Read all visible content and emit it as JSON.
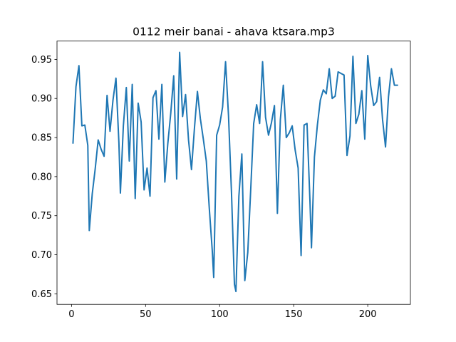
{
  "chart_data": {
    "type": "line",
    "title": "0112 meir banai - ahava ktsara.mp3",
    "xlabel": "",
    "ylabel": "",
    "xlim": [
      -9.8,
      228.8
    ],
    "ylim": [
      0.6365,
      0.9735
    ],
    "xticks": [
      0,
      50,
      100,
      150,
      200
    ],
    "xtick_labels": [
      "0",
      "50",
      "100",
      "150",
      "200"
    ],
    "yticks": [
      0.65,
      0.7,
      0.75,
      0.8,
      0.85,
      0.9,
      0.95
    ],
    "ytick_labels": [
      "0.65",
      "0.70",
      "0.75",
      "0.80",
      "0.85",
      "0.90",
      "0.95"
    ],
    "grid": false,
    "legend": "none",
    "series": [
      {
        "color": "#1f77b4",
        "points": [
          [
            1,
            0.843
          ],
          [
            3,
            0.915
          ],
          [
            5,
            0.942
          ],
          [
            7,
            0.865
          ],
          [
            9,
            0.866
          ],
          [
            11,
            0.84
          ],
          [
            12,
            0.731
          ],
          [
            14,
            0.778
          ],
          [
            16,
            0.81
          ],
          [
            18,
            0.847
          ],
          [
            20,
            0.835
          ],
          [
            22,
            0.826
          ],
          [
            24,
            0.904
          ],
          [
            26,
            0.858
          ],
          [
            28,
            0.898
          ],
          [
            30,
            0.926
          ],
          [
            32,
            0.843
          ],
          [
            33,
            0.779
          ],
          [
            35,
            0.865
          ],
          [
            37,
            0.914
          ],
          [
            39,
            0.82
          ],
          [
            41,
            0.918
          ],
          [
            43,
            0.772
          ],
          [
            45,
            0.894
          ],
          [
            47,
            0.87
          ],
          [
            49,
            0.783
          ],
          [
            51,
            0.811
          ],
          [
            53,
            0.775
          ],
          [
            55,
            0.901
          ],
          [
            57,
            0.91
          ],
          [
            59,
            0.848
          ],
          [
            61,
            0.918
          ],
          [
            63,
            0.793
          ],
          [
            65,
            0.842
          ],
          [
            67,
            0.881
          ],
          [
            69,
            0.929
          ],
          [
            71,
            0.797
          ],
          [
            73,
            0.959
          ],
          [
            75,
            0.877
          ],
          [
            77,
            0.905
          ],
          [
            79,
            0.847
          ],
          [
            81,
            0.809
          ],
          [
            83,
            0.862
          ],
          [
            85,
            0.909
          ],
          [
            87,
            0.874
          ],
          [
            89,
            0.848
          ],
          [
            91,
            0.82
          ],
          [
            93,
            0.76
          ],
          [
            95,
            0.706
          ],
          [
            96,
            0.671
          ],
          [
            98,
            0.853
          ],
          [
            100,
            0.866
          ],
          [
            102,
            0.889
          ],
          [
            104,
            0.947
          ],
          [
            106,
            0.878
          ],
          [
            108,
            0.78
          ],
          [
            110,
            0.662
          ],
          [
            111,
            0.653
          ],
          [
            113,
            0.775
          ],
          [
            115,
            0.829
          ],
          [
            117,
            0.667
          ],
          [
            119,
            0.703
          ],
          [
            121,
            0.784
          ],
          [
            123,
            0.868
          ],
          [
            125,
            0.892
          ],
          [
            127,
            0.868
          ],
          [
            129,
            0.947
          ],
          [
            131,
            0.876
          ],
          [
            133,
            0.853
          ],
          [
            135,
            0.869
          ],
          [
            137,
            0.891
          ],
          [
            139,
            0.753
          ],
          [
            141,
            0.873
          ],
          [
            143,
            0.917
          ],
          [
            145,
            0.85
          ],
          [
            147,
            0.856
          ],
          [
            149,
            0.865
          ],
          [
            151,
            0.834
          ],
          [
            153,
            0.811
          ],
          [
            155,
            0.699
          ],
          [
            157,
            0.866
          ],
          [
            159,
            0.868
          ],
          [
            161,
            0.768
          ],
          [
            162,
            0.709
          ],
          [
            164,
            0.825
          ],
          [
            166,
            0.866
          ],
          [
            168,
            0.898
          ],
          [
            170,
            0.911
          ],
          [
            172,
            0.906
          ],
          [
            174,
            0.938
          ],
          [
            176,
            0.9
          ],
          [
            178,
            0.903
          ],
          [
            180,
            0.934
          ],
          [
            182,
            0.932
          ],
          [
            184,
            0.93
          ],
          [
            186,
            0.827
          ],
          [
            188,
            0.852
          ],
          [
            190,
            0.954
          ],
          [
            192,
            0.868
          ],
          [
            194,
            0.88
          ],
          [
            196,
            0.91
          ],
          [
            198,
            0.848
          ],
          [
            200,
            0.955
          ],
          [
            202,
            0.916
          ],
          [
            204,
            0.891
          ],
          [
            206,
            0.896
          ],
          [
            208,
            0.927
          ],
          [
            210,
            0.873
          ],
          [
            212,
            0.838
          ],
          [
            214,
            0.902
          ],
          [
            216,
            0.938
          ],
          [
            218,
            0.917
          ],
          [
            220,
            0.917
          ]
        ]
      }
    ]
  }
}
